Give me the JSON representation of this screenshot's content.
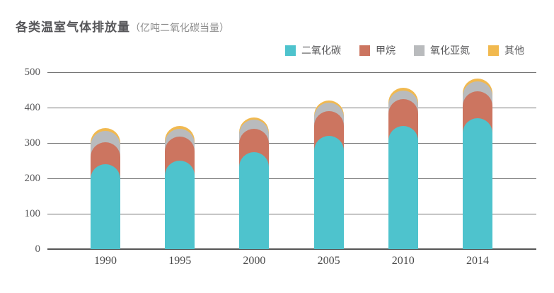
{
  "title": {
    "main": "各类温室气体排放量",
    "unit": "（亿吨二氧化碳当量）"
  },
  "legend": [
    {
      "label": "二氧化碳",
      "color": "#4EC3CD"
    },
    {
      "label": "甲烷",
      "color": "#CC7560"
    },
    {
      "label": "氧化亚氮",
      "color": "#B9BBBD"
    },
    {
      "label": "其他",
      "color": "#F1B94F"
    }
  ],
  "chart_data": {
    "type": "bar",
    "stacked": true,
    "bar_style": "rounded-top-overlapping-caps",
    "title": "各类温室气体排放量（亿吨二氧化碳当量）",
    "categories": [
      "1990",
      "1995",
      "2000",
      "2005",
      "2010",
      "2014"
    ],
    "series": [
      {
        "name": "二氧化碳",
        "color": "#4EC3CD",
        "values": [
          240,
          250,
          274,
          320,
          348,
          370
        ]
      },
      {
        "name": "甲烷",
        "color": "#CC7560",
        "values": [
          62,
          68,
          66,
          70,
          76,
          76
        ]
      },
      {
        "name": "氧化亚氮",
        "color": "#B9BBBD",
        "values": [
          32,
          22,
          26,
          24,
          24,
          28
        ]
      },
      {
        "name": "其他",
        "color": "#F1B94F",
        "values": [
          8,
          8,
          6,
          6,
          8,
          8
        ]
      }
    ],
    "totals": [
      342,
      348,
      372,
      420,
      456,
      482
    ],
    "xlabel": "",
    "ylabel": "",
    "ylim": [
      0,
      500
    ],
    "yticks": [
      0,
      100,
      200,
      300,
      400,
      500
    ],
    "grid": true,
    "legend_position": "top-right"
  },
  "colors": {
    "title": "#57575a",
    "title_unit": "#8e8e8e",
    "gridline": "#757575",
    "axis_line": "#565656",
    "tick_label": "#58585a"
  }
}
